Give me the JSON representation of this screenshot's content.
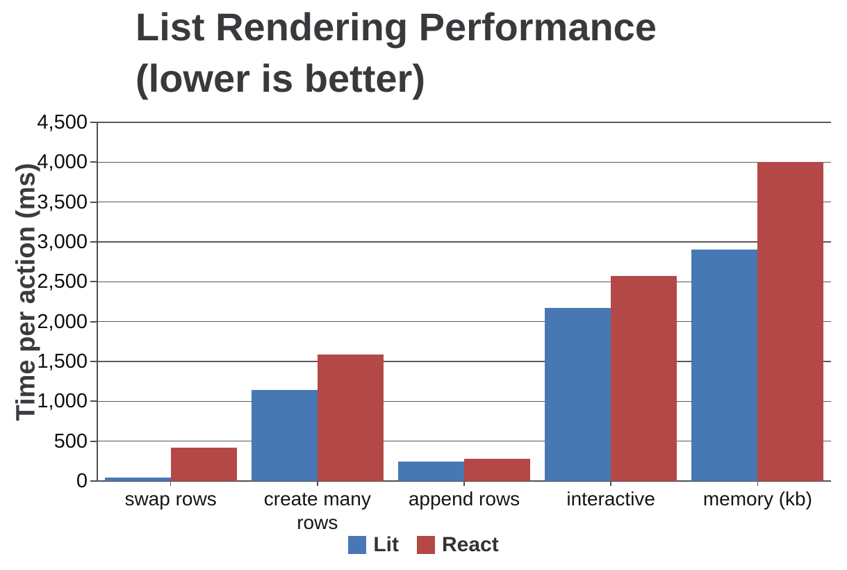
{
  "chart_data": {
    "type": "bar",
    "title": "List Rendering Performance (lower is better)",
    "title_lines": [
      "List Rendering Performance",
      "(lower is better)"
    ],
    "ylabel": "Time per action (ms)",
    "xlabel": "",
    "categories": [
      "swap rows",
      "create many rows",
      "append rows",
      "interactive",
      "memory (kb)"
    ],
    "series": [
      {
        "name": "Lit",
        "color": "#4878b4",
        "values": [
          45,
          1140,
          240,
          2170,
          2900
        ]
      },
      {
        "name": "React",
        "color": "#b44846",
        "values": [
          415,
          1590,
          275,
          2575,
          4000
        ]
      }
    ],
    "ylim": [
      0,
      4500
    ],
    "ytick_interval": 500,
    "ytick_labels": [
      "0",
      "500",
      "1,000",
      "1,500",
      "2,000",
      "2,500",
      "3,000",
      "3,500",
      "4,000",
      "4,500"
    ],
    "grid": true,
    "legend_position": "bottom"
  }
}
